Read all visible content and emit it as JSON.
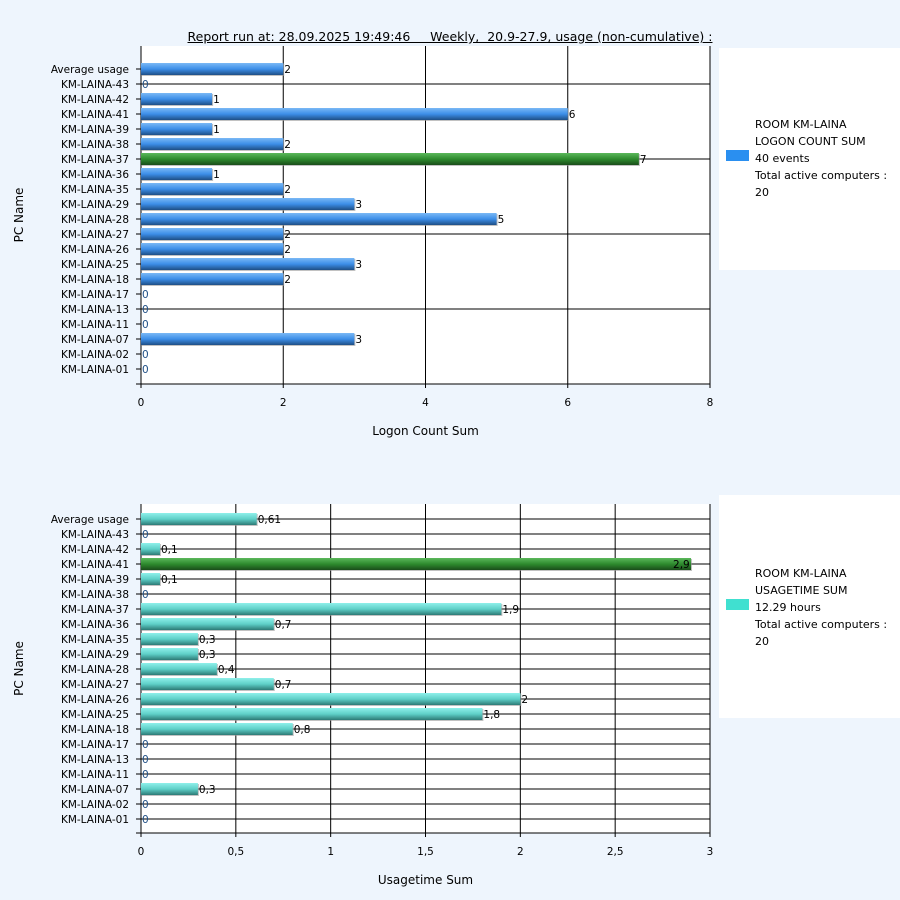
{
  "header": {
    "title": "Report run at: 28.09.2025 19:49:46     Weekly,  20.9-27.9, usage (non-cumulative) :"
  },
  "chart_data": [
    {
      "type": "bar",
      "orientation": "horizontal",
      "title": "",
      "xlabel": "Logon Count Sum",
      "ylabel": "PC Name",
      "xlim": [
        0,
        8
      ],
      "xticks": [
        "0",
        "2",
        "4",
        "6",
        "8"
      ],
      "xtick_values": [
        0,
        2,
        4,
        6,
        8
      ],
      "categories": [
        "Average usage",
        "KM-LAINA-43",
        "KM-LAINA-42",
        "KM-LAINA-41",
        "KM-LAINA-39",
        "KM-LAINA-38",
        "KM-LAINA-37",
        "KM-LAINA-36",
        "KM-LAINA-35",
        "KM-LAINA-29",
        "KM-LAINA-28",
        "KM-LAINA-27",
        "KM-LAINA-26",
        "KM-LAINA-25",
        "KM-LAINA-18",
        "KM-LAINA-17",
        "KM-LAINA-13",
        "KM-LAINA-11",
        "KM-LAINA-07",
        "KM-LAINA-02",
        "KM-LAINA-01"
      ],
      "values": [
        2,
        0,
        1,
        6,
        1,
        2,
        7,
        1,
        2,
        3,
        5,
        2,
        2,
        3,
        2,
        0,
        0,
        0,
        3,
        0,
        0
      ],
      "labels": [
        "2",
        "0",
        "1",
        "6",
        "1",
        "2",
        "7",
        "1",
        "2",
        "3",
        "5",
        "2",
        "2",
        "3",
        "2",
        "0",
        "0",
        "0",
        "3",
        "0",
        "0"
      ],
      "highlight_index": 6,
      "bar_color": "#3d8ee8",
      "highlight_color": "#2e8b2e",
      "legend": {
        "lines": [
          "ROOM KM-LAINA",
          "LOGON COUNT SUM",
          "40 events",
          "Total active computers :",
          "20"
        ],
        "swatch": "#2a8ff0"
      }
    },
    {
      "type": "bar",
      "orientation": "horizontal",
      "title": "",
      "xlabel": "Usagetime Sum",
      "ylabel": "PC Name",
      "xlim": [
        0,
        3
      ],
      "xticks": [
        "0",
        "0,5",
        "1",
        "1,5",
        "2",
        "2,5",
        "3"
      ],
      "xtick_values": [
        0,
        0.5,
        1,
        1.5,
        2,
        2.5,
        3
      ],
      "categories": [
        "Average usage",
        "KM-LAINA-43",
        "KM-LAINA-42",
        "KM-LAINA-41",
        "KM-LAINA-39",
        "KM-LAINA-38",
        "KM-LAINA-37",
        "KM-LAINA-36",
        "KM-LAINA-35",
        "KM-LAINA-29",
        "KM-LAINA-28",
        "KM-LAINA-27",
        "KM-LAINA-26",
        "KM-LAINA-25",
        "KM-LAINA-18",
        "KM-LAINA-17",
        "KM-LAINA-13",
        "KM-LAINA-11",
        "KM-LAINA-07",
        "KM-LAINA-02",
        "KM-LAINA-01"
      ],
      "values": [
        0.61,
        0,
        0.1,
        2.9,
        0.1,
        0,
        1.9,
        0.7,
        0.3,
        0.3,
        0.4,
        0.7,
        2,
        1.8,
        0.8,
        0,
        0,
        0,
        0.3,
        0,
        0
      ],
      "labels": [
        "0,61",
        "0",
        "0,1",
        "2,9",
        "0,1",
        "0",
        "1,9",
        "0,7",
        "0,3",
        "0,3",
        "0,4",
        "0,7",
        "2",
        "1,8",
        "0,8",
        "0",
        "0",
        "0",
        "0,3",
        "0",
        "0"
      ],
      "highlight_index": 3,
      "bar_color": "#5fd8d0",
      "highlight_color": "#2e8b2e",
      "legend": {
        "lines": [
          "ROOM KM-LAINA",
          "USAGETIME SUM",
          "12.29 hours",
          "Total active computers :",
          "20"
        ],
        "swatch": "#40e0d0"
      }
    }
  ]
}
